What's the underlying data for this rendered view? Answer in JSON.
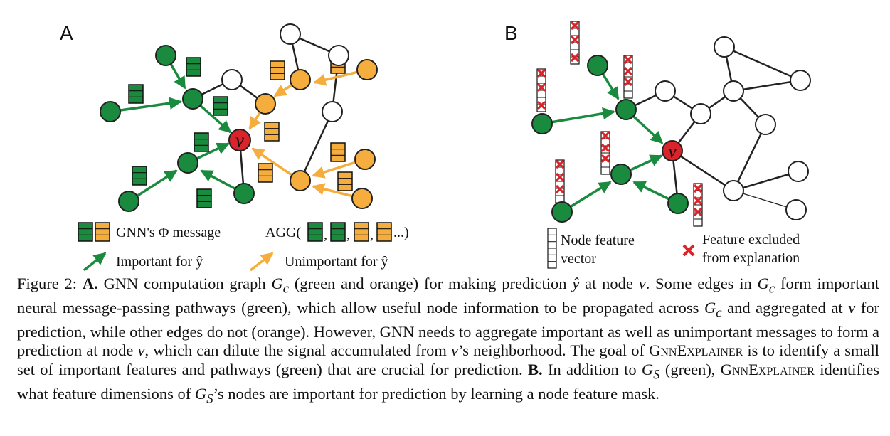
{
  "panel_a": {
    "label": "A",
    "center_node": "v",
    "legend": {
      "message_label": "GNN's Φ message",
      "agg_prefix": "AGG(",
      "agg_suffix": "...)",
      "important_label": "Important for ŷ",
      "unimportant_label": "Unimportant for ŷ"
    }
  },
  "panel_b": {
    "label": "B",
    "center_node": "v",
    "legend": {
      "feature_vector_line1": "Node feature",
      "feature_vector_line2": "vector",
      "excluded_line1": "Feature excluded",
      "excluded_line2": "from explanation"
    }
  },
  "caption": {
    "fig_label": "Figure 2:",
    "a_label": "A.",
    "part1": "GNN computation graph",
    "gc": "G",
    "gc_sub": "c",
    "part2": "(green and orange) for making prediction",
    "yhat": "ŷ",
    "part3": "at node",
    "v": "v",
    "part4": ". Some edges in",
    "part5": "form important neural message-passing pathways (green), which allow useful node information to be propagated across",
    "part6": "and aggregated at",
    "part7": "for prediction, while other edges do not (orange). However, GNN needs to aggregate important as well as unimportant messages to form a prediction at node",
    "part8": ", which can dilute the signal accumulated from",
    "part9": "’s neighborhood. The goal of",
    "explainer": "GnnExplainer",
    "part10": "is to identify a small set of important features and pathways (green) that are crucial for prediction.",
    "b_label": "B.",
    "part11": "In addition to",
    "gs": "G",
    "gs_sub": "S",
    "part12": "(green),",
    "part13": "identifies what feature dimensions of",
    "part14": "’s nodes are important for prediction by learning a node feature mask."
  },
  "colors": {
    "green": "#1a8a3e",
    "orange": "#f5ad3d",
    "red": "#d8242a",
    "edge": "#222222"
  }
}
